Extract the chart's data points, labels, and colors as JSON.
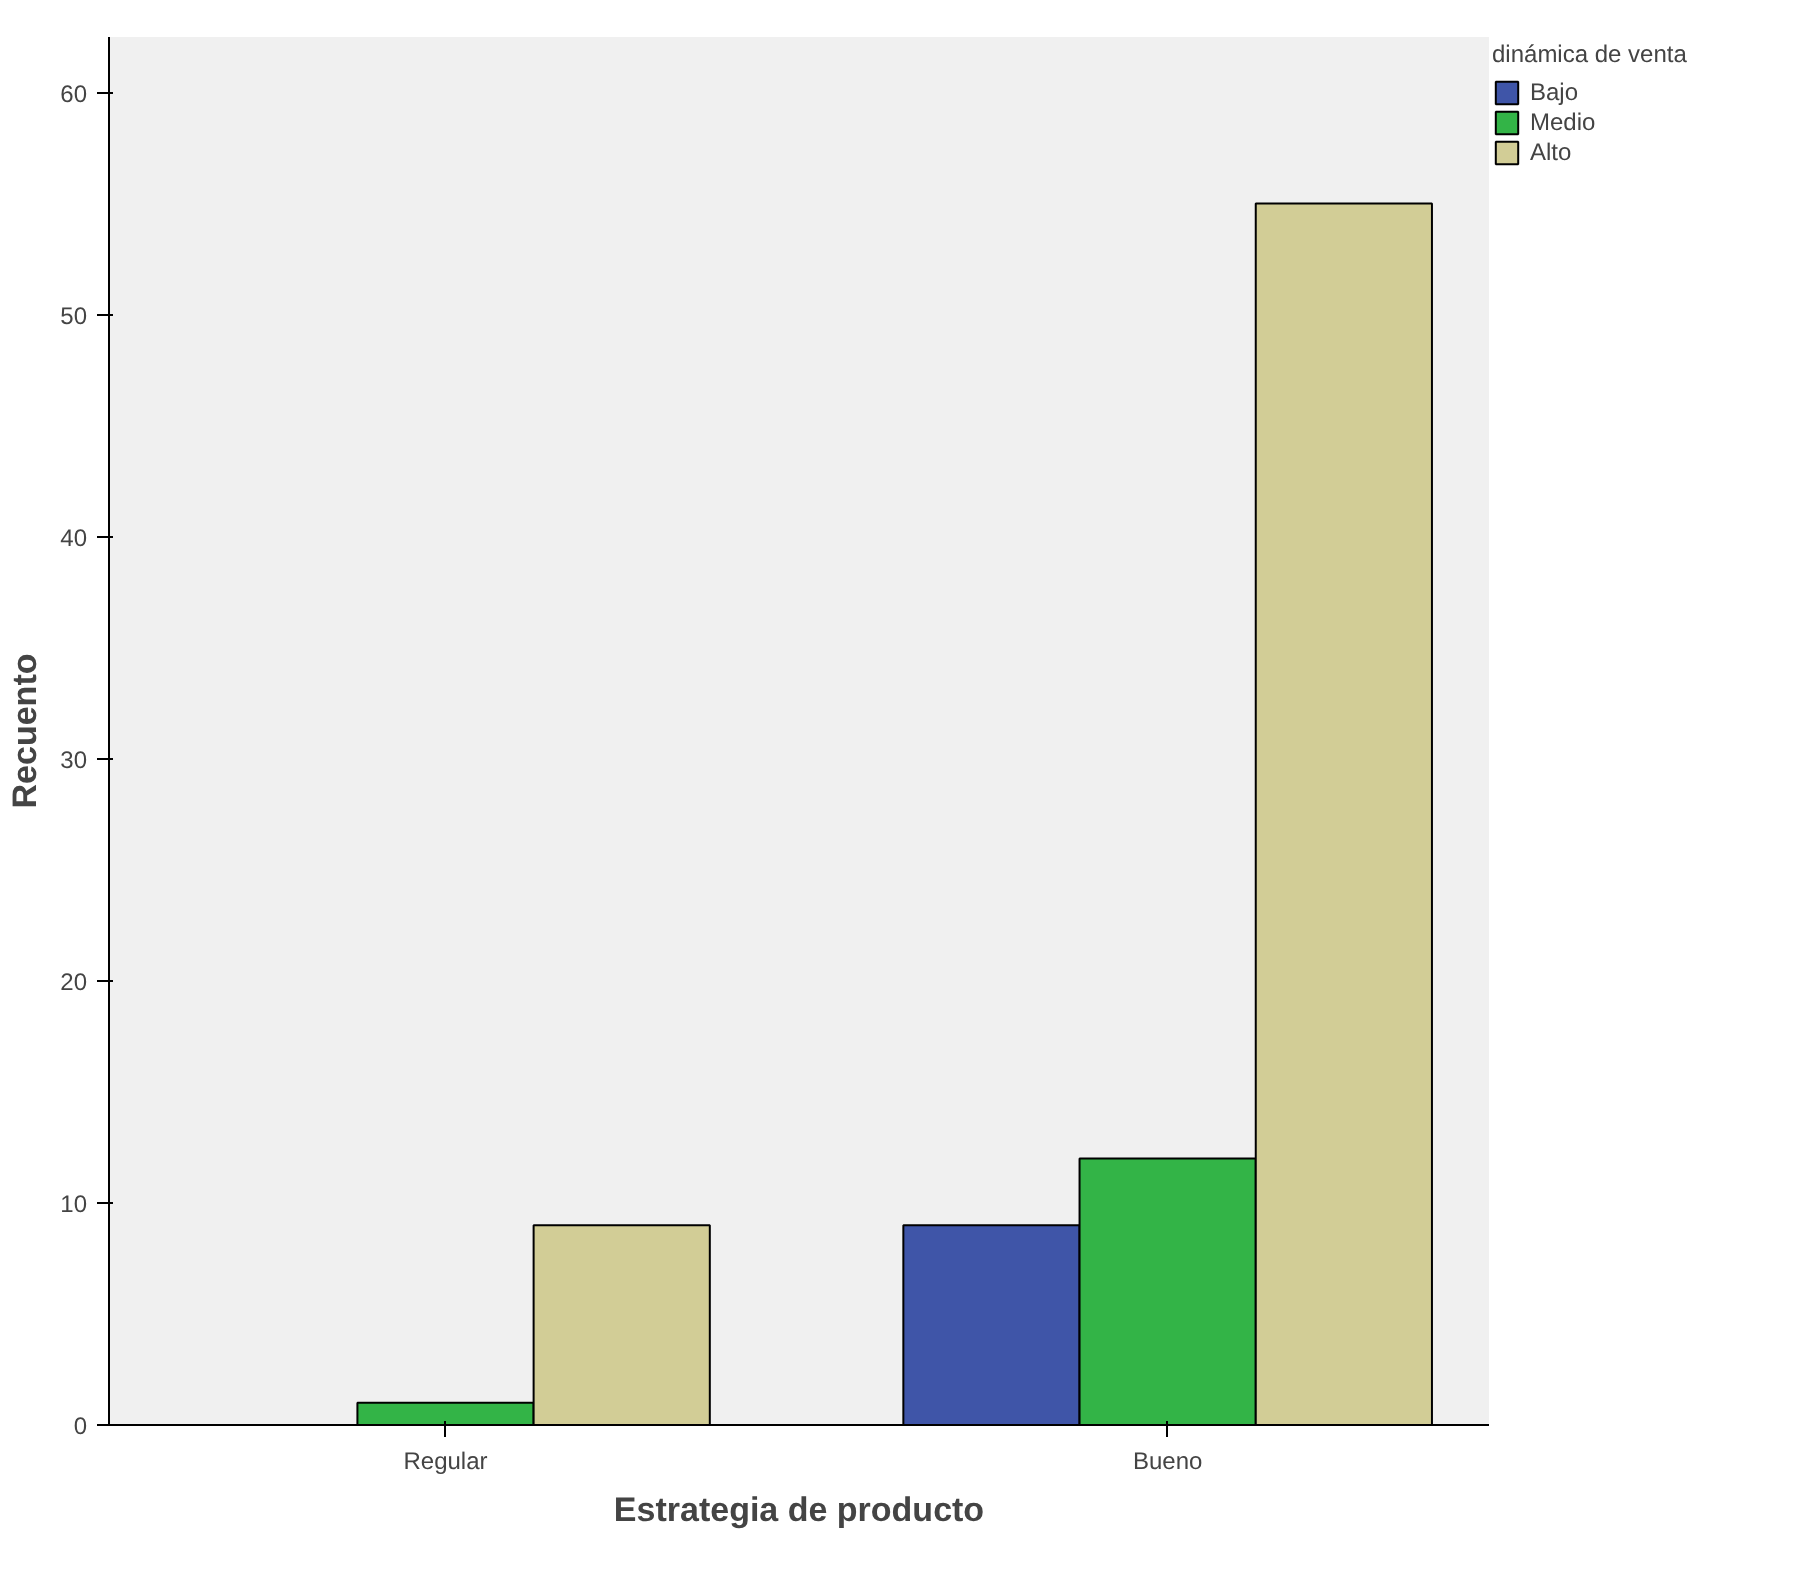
{
  "chart_data": {
    "type": "bar",
    "xlabel": "Estrategia de producto",
    "ylabel": "Recuento",
    "legend_title": "dinámica de venta",
    "categories": [
      "Regular",
      "Bueno"
    ],
    "series": [
      {
        "name": "Bajo",
        "color": "#3f55a8",
        "values": [
          null,
          9
        ]
      },
      {
        "name": "Medio",
        "color": "#33b447",
        "values": [
          1,
          12
        ]
      },
      {
        "name": "Alto",
        "color": "#d2cd96",
        "values": [
          9,
          55
        ]
      }
    ],
    "ylim": [
      0,
      62.5
    ],
    "yticks": [
      0,
      10,
      20,
      30,
      40,
      50,
      60
    ],
    "grid": false,
    "legend": "right"
  }
}
